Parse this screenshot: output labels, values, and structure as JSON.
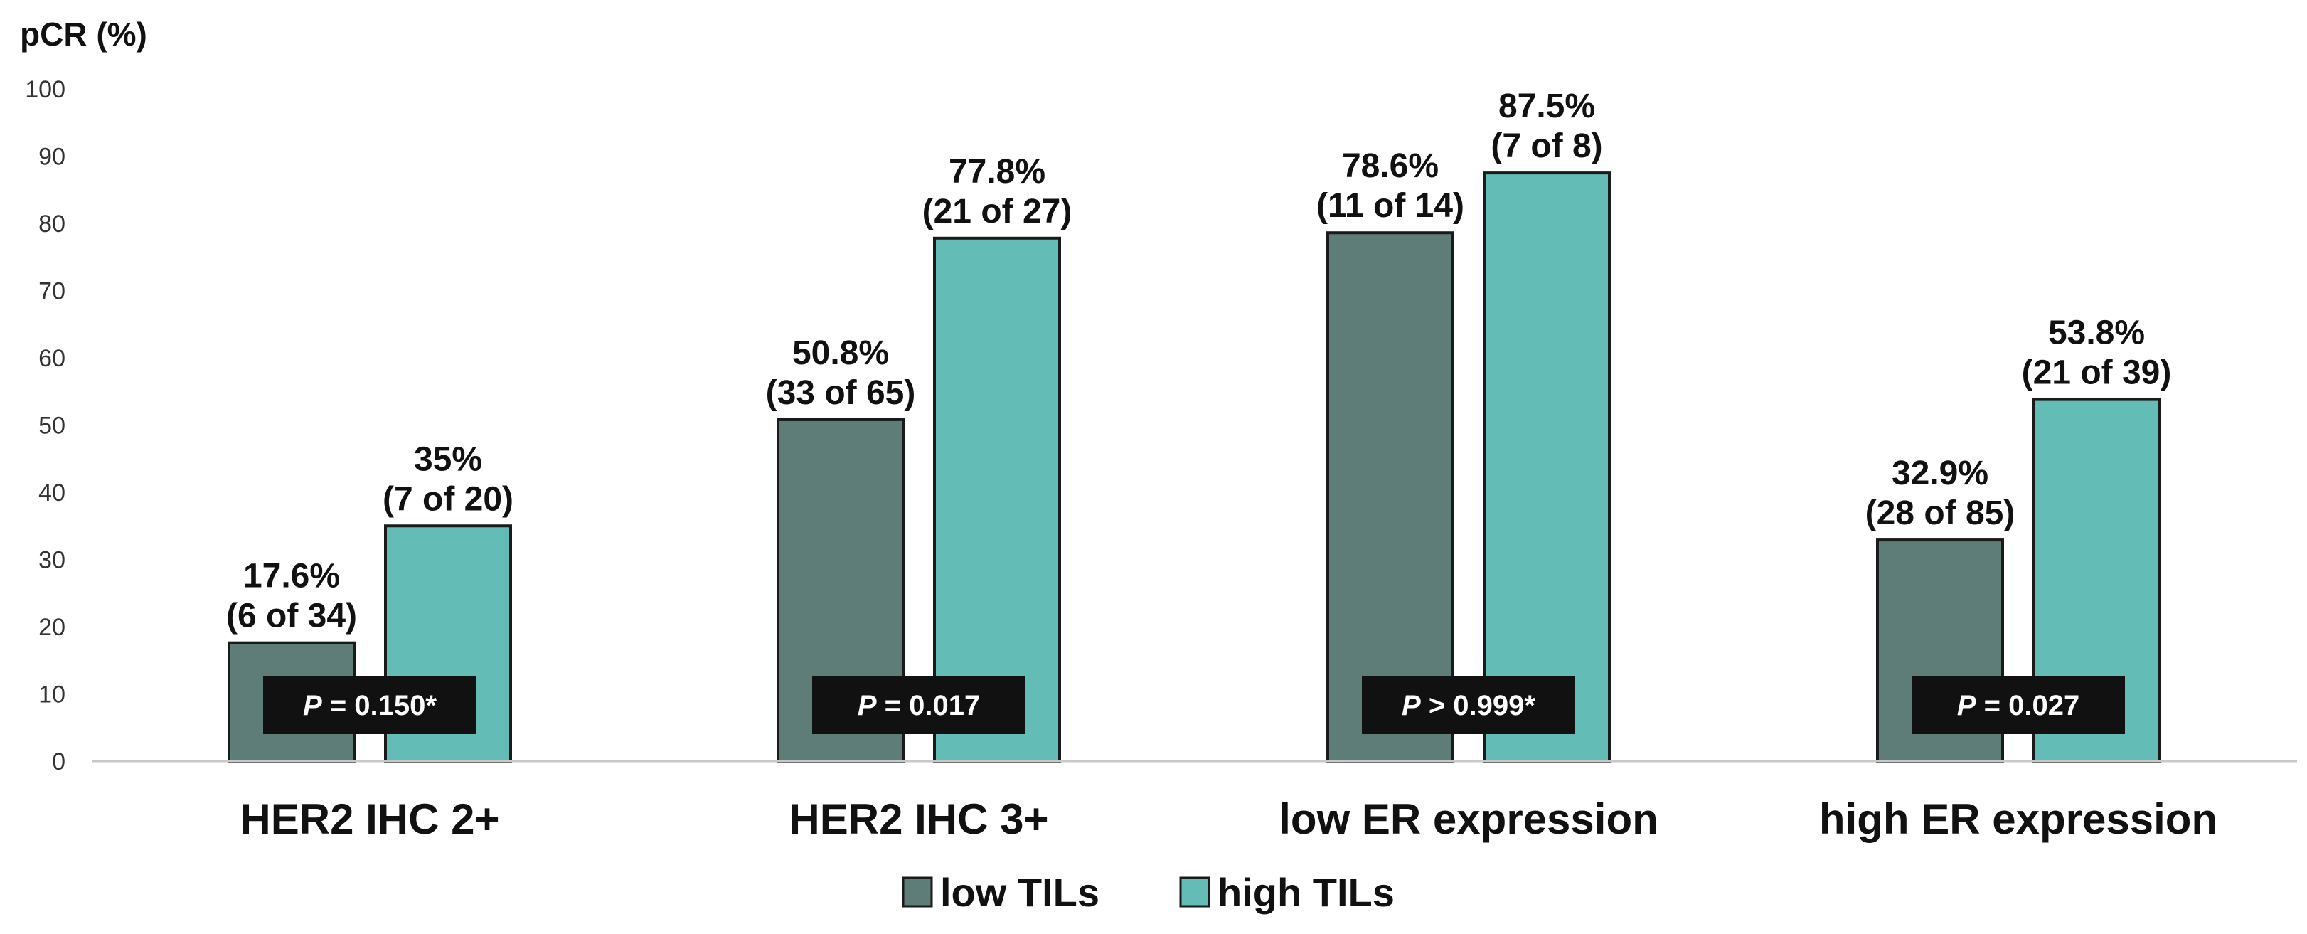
{
  "chart_data": {
    "type": "bar",
    "ylabel": "pCR (%)",
    "ylim": [
      0,
      100
    ],
    "yticks": [
      "0",
      "10",
      "20",
      "30",
      "40",
      "50",
      "60",
      "70",
      "80",
      "90",
      "100"
    ],
    "grid": false,
    "legend_position": "bottom-center",
    "categories": [
      "HER2 IHC 2+",
      "HER2 IHC 3+",
      "low ER expression",
      "high ER expression"
    ],
    "series": [
      {
        "name": "low TILs",
        "color": "#5e7c78",
        "values": [
          17.6,
          50.8,
          78.6,
          32.9
        ],
        "labels_pct": [
          "17.6%",
          "50.8%",
          "78.6%",
          "32.9%"
        ],
        "labels_count": [
          "(6 of 34)",
          "(33 of 65)",
          "(11 of 14)",
          "(28 of 85)"
        ]
      },
      {
        "name": "high TILs",
        "color": "#63bdb6",
        "values": [
          35,
          77.8,
          87.5,
          53.8
        ],
        "labels_pct": [
          "35%",
          "77.8%",
          "87.5%",
          "53.8%"
        ],
        "labels_count": [
          "(7 of 20)",
          "(21 of 27)",
          "(7 of 8)",
          "(21 of 39)"
        ]
      }
    ],
    "p_values": [
      {
        "label": "P",
        "text": " = 0.150*"
      },
      {
        "label": "P",
        "text": " = 0.017"
      },
      {
        "label": "P",
        "text": " > 0.999*"
      },
      {
        "label": "P",
        "text": " = 0.027"
      }
    ],
    "p_box_color": "#111111"
  }
}
